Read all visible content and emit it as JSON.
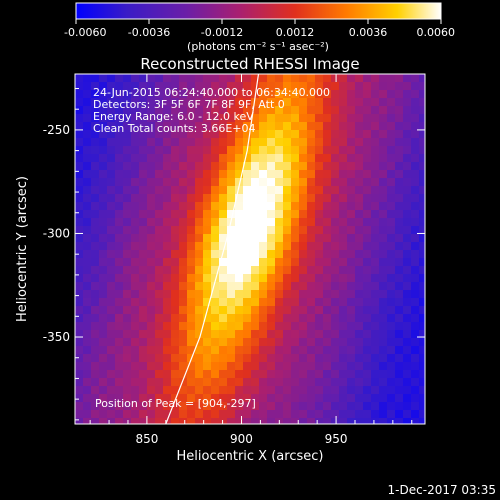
{
  "chart_data": {
    "type": "heatmap",
    "title": "Reconstructed RHESSI Image",
    "xlabel": "Heliocentric X (arcsec)",
    "ylabel": "Heliocentric Y (arcsec)",
    "xlim": [
      812,
      997
    ],
    "ylim": [
      -392,
      -223
    ],
    "x_ticks": [
      850,
      900,
      950
    ],
    "y_ticks": [
      -250,
      -300,
      -350
    ],
    "x_tick_labels": [
      "850",
      "900",
      "950"
    ],
    "y_tick_labels": [
      "-250",
      "-300",
      "-350"
    ],
    "colorbar": {
      "min": -0.006,
      "max": 0.006,
      "ticks": [
        -0.006,
        -0.0036,
        -0.0012,
        0.0012,
        0.0036,
        0.006
      ],
      "tick_labels": [
        "-0.0060",
        "-0.0036",
        "-0.0012",
        "0.0012",
        "0.0036",
        "0.0060"
      ],
      "unit": "(photons cm⁻² s⁻¹ asec⁻²)",
      "colormap": [
        "#0000ff",
        "#3a1cc6",
        "#6a1ea8",
        "#aa1f6f",
        "#e0301e",
        "#ff7a00",
        "#ffd000",
        "#ffffff"
      ]
    },
    "annotations": {
      "time": "24-Jun-2015 06:24:40.000 to 06:34:40.000",
      "detectors": "Detectors: 3F 5F 6F 7F 8F 9F, Att 0",
      "energy": "Energy Range: 6.0 - 12.0 keV",
      "clean": "Clean    Total counts: 3.66E+04",
      "peak": "Position of Peak = [904,-297]"
    },
    "peak": {
      "x": 904,
      "y": -297
    },
    "limb_curve": [
      [
        860,
        -392
      ],
      [
        878,
        -350
      ],
      [
        893,
        -300
      ],
      [
        903,
        -260
      ],
      [
        909,
        -223
      ]
    ]
  },
  "footer": {
    "date": "1-Dec-2017 03:35"
  }
}
